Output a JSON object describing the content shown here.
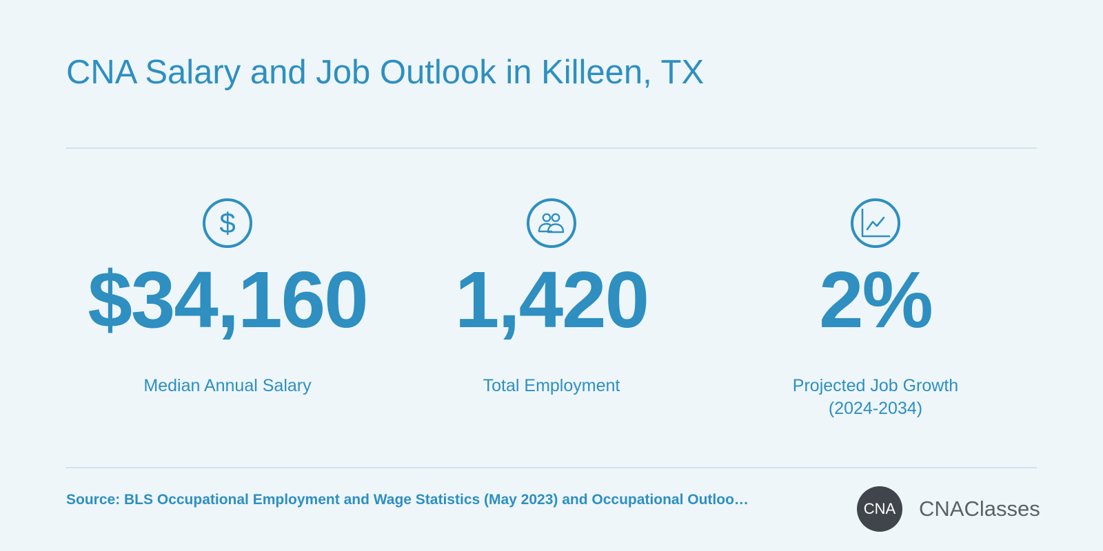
{
  "title": "CNA Salary and Job Outlook in Killeen, TX",
  "stats": [
    {
      "icon": "dollar-icon",
      "value": "$34,160",
      "label_lines": [
        "Median Annual Salary"
      ]
    },
    {
      "icon": "people-icon",
      "value": "1,420",
      "label_lines": [
        "Total Employment"
      ]
    },
    {
      "icon": "line-chart-icon",
      "value": "2%",
      "label_lines": [
        "Projected Job Growth",
        "(2024-2034)"
      ]
    }
  ],
  "dollar_symbol": "$",
  "source": "Source: BLS Occupational Employment and Wage Statistics (May 2023) and Occupational Outloo…",
  "logo": {
    "badge": "CNA",
    "text": "CNAClasses"
  },
  "colors": {
    "background": "#eef6fa",
    "accent": "#2e8fc0",
    "divider": "#cfe3ea",
    "logo_badge": "#3f454b",
    "logo_text": "#5b6167"
  }
}
